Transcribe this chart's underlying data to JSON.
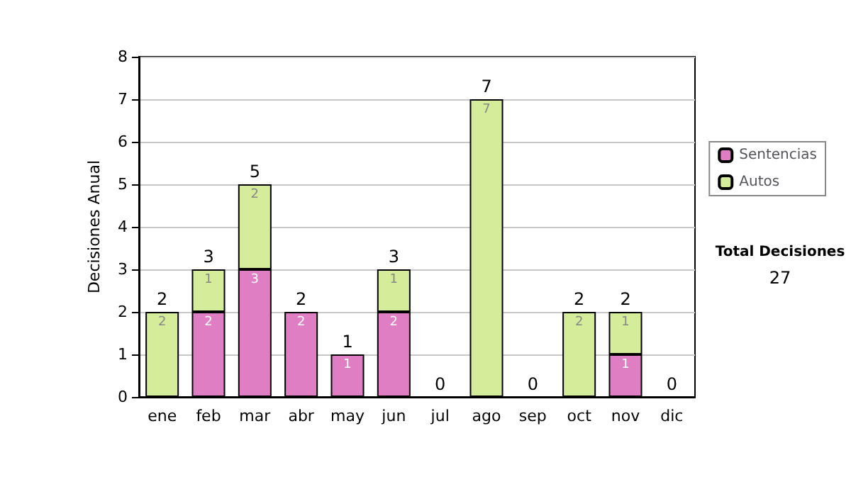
{
  "chart_data": {
    "type": "bar",
    "stacked": true,
    "ylabel": "Decisiones Anual",
    "categories": [
      "ene",
      "feb",
      "mar",
      "abr",
      "may",
      "jun",
      "jul",
      "ago",
      "sep",
      "oct",
      "nov",
      "dic"
    ],
    "series": [
      {
        "name": "Sentencias",
        "color": "#e07ec4",
        "values": [
          null,
          2,
          3,
          2,
          1,
          2,
          null,
          null,
          null,
          null,
          1,
          null
        ]
      },
      {
        "name": "Autos",
        "color": "#d5ec9a",
        "values": [
          2,
          1,
          2,
          null,
          null,
          1,
          null,
          7,
          null,
          2,
          1,
          null
        ]
      }
    ],
    "totals": [
      "2",
      "3",
      "5",
      "2",
      "1",
      "3",
      "0",
      "7",
      "0",
      "2",
      "2",
      "0"
    ],
    "data_labels": true,
    "ylim": [
      0,
      8
    ],
    "yticks": [
      0,
      1,
      2,
      3,
      4,
      5,
      6,
      7,
      8
    ],
    "grid": "y",
    "legend": "right",
    "annotations": [
      "Total Decisiones",
      "27"
    ]
  }
}
